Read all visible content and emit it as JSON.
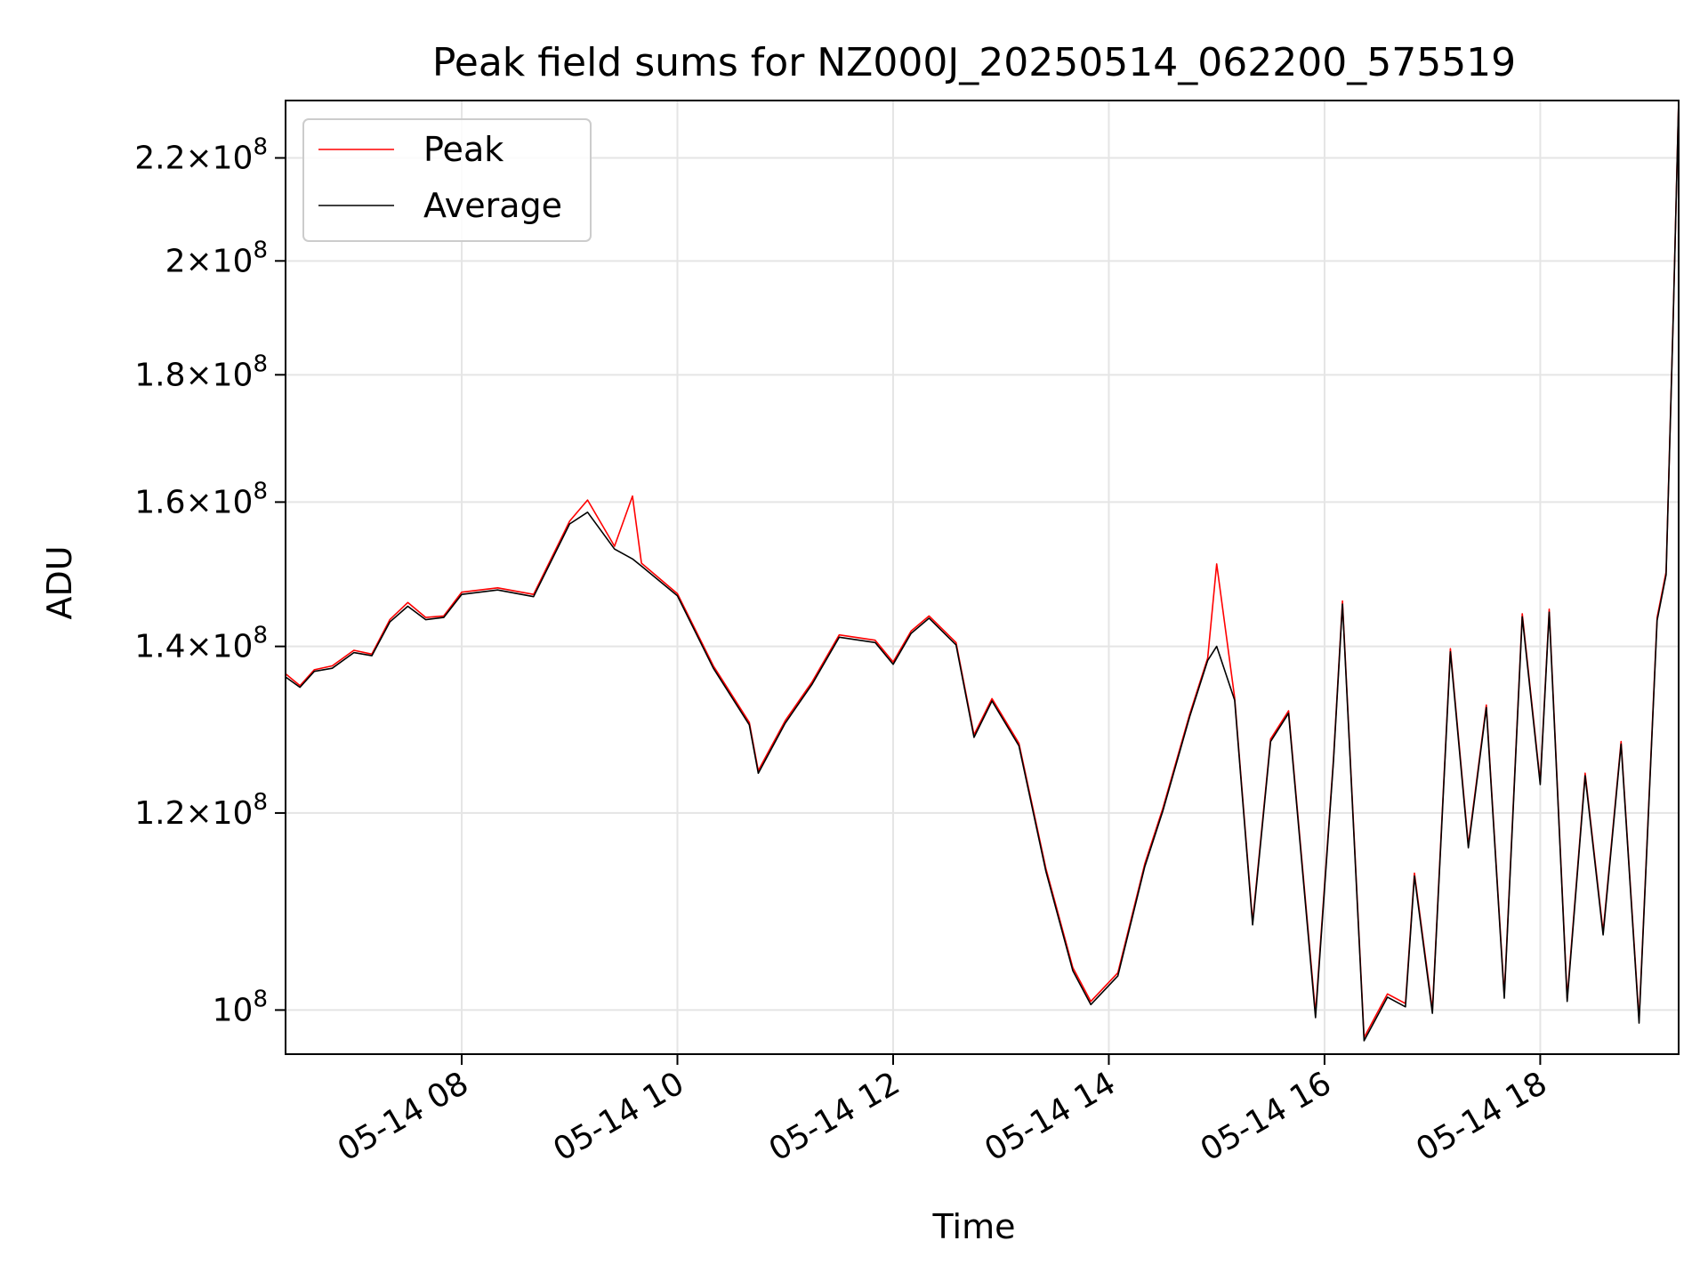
{
  "chart_data": {
    "type": "line",
    "title": "Peak field sums for NZ000J_20250514_062200_575519",
    "xlabel": "Time",
    "ylabel": "ADU",
    "y_scale": "log",
    "grid": true,
    "legend_position": "top-left",
    "xlim": [
      "2025-05-14 06:22",
      "2025-05-14 19:17"
    ],
    "ylim": [
      96000000,
      232000000
    ],
    "x_tick_labels": [
      "05-14 08",
      "05-14 10",
      "05-14 12",
      "05-14 14",
      "05-14 16",
      "05-14 18"
    ],
    "y_ticks": [
      {
        "value": 100000000,
        "mantissa": "",
        "exp": "8"
      },
      {
        "value": 120000000,
        "mantissa": "1.2",
        "exp": "8"
      },
      {
        "value": 140000000,
        "mantissa": "1.4",
        "exp": "8"
      },
      {
        "value": 160000000,
        "mantissa": "1.6",
        "exp": "8"
      },
      {
        "value": 180000000,
        "mantissa": "1.8",
        "exp": "8"
      },
      {
        "value": 200000000,
        "mantissa": "2",
        "exp": "8"
      },
      {
        "value": 220000000,
        "mantissa": "2.2",
        "exp": "8"
      }
    ],
    "series": [
      {
        "name": "Peak",
        "color": "#ff0000",
        "points": [
          [
            "2025-05-14 06:22",
            136500000
          ],
          [
            "2025-05-14 06:30",
            135000000
          ],
          [
            "2025-05-14 06:38",
            137000000
          ],
          [
            "2025-05-14 06:48",
            137500000
          ],
          [
            "2025-05-14 07:00",
            139500000
          ],
          [
            "2025-05-14 07:10",
            139000000
          ],
          [
            "2025-05-14 07:20",
            143500000
          ],
          [
            "2025-05-14 07:30",
            145800000
          ],
          [
            "2025-05-14 07:40",
            143800000
          ],
          [
            "2025-05-14 07:50",
            144000000
          ],
          [
            "2025-05-14 08:00",
            147200000
          ],
          [
            "2025-05-14 08:20",
            147800000
          ],
          [
            "2025-05-14 08:40",
            146900000
          ],
          [
            "2025-05-14 09:00",
            157200000
          ],
          [
            "2025-05-14 09:10",
            160300000
          ],
          [
            "2025-05-14 09:25",
            153600000
          ],
          [
            "2025-05-14 09:35",
            160900000
          ],
          [
            "2025-05-14 09:40",
            151200000
          ],
          [
            "2025-05-14 10:00",
            147000000
          ],
          [
            "2025-05-14 10:20",
            137500000
          ],
          [
            "2025-05-14 10:40",
            130500000
          ],
          [
            "2025-05-14 10:45",
            124800000
          ],
          [
            "2025-05-14 11:00",
            130700000
          ],
          [
            "2025-05-14 11:15",
            135500000
          ],
          [
            "2025-05-14 11:30",
            141500000
          ],
          [
            "2025-05-14 11:50",
            140800000
          ],
          [
            "2025-05-14 12:00",
            138000000
          ],
          [
            "2025-05-14 12:10",
            142000000
          ],
          [
            "2025-05-14 12:20",
            144000000
          ],
          [
            "2025-05-14 12:35",
            140500000
          ],
          [
            "2025-05-14 12:45",
            129000000
          ],
          [
            "2025-05-14 12:55",
            133400000
          ],
          [
            "2025-05-14 13:10",
            128000000
          ],
          [
            "2025-05-14 13:25",
            114000000
          ],
          [
            "2025-05-14 13:40",
            104000000
          ],
          [
            "2025-05-14 13:50",
            100800000
          ],
          [
            "2025-05-14 14:05",
            103500000
          ],
          [
            "2025-05-14 14:20",
            114500000
          ],
          [
            "2025-05-14 14:30",
            120500000
          ],
          [
            "2025-05-14 14:45",
            131500000
          ],
          [
            "2025-05-14 14:55",
            138500000
          ],
          [
            "2025-05-14 15:00",
            151100000
          ],
          [
            "2025-05-14 15:10",
            133500000
          ],
          [
            "2025-05-14 15:20",
            108500000
          ],
          [
            "2025-05-14 15:30",
            128500000
          ],
          [
            "2025-05-14 15:40",
            131900000
          ],
          [
            "2025-05-14 15:55",
            99700000
          ],
          [
            "2025-05-14 16:05",
            126200000
          ],
          [
            "2025-05-14 16:10",
            146000000
          ],
          [
            "2025-05-14 16:22",
            97500000
          ],
          [
            "2025-05-14 16:35",
            101500000
          ],
          [
            "2025-05-14 16:45",
            100600000
          ],
          [
            "2025-05-14 16:50",
            113500000
          ],
          [
            "2025-05-14 17:00",
            100000000
          ],
          [
            "2025-05-14 17:10",
            139700000
          ],
          [
            "2025-05-14 17:20",
            116500000
          ],
          [
            "2025-05-14 17:30",
            132600000
          ],
          [
            "2025-05-14 17:40",
            101400000
          ],
          [
            "2025-05-14 17:50",
            144300000
          ],
          [
            "2025-05-14 18:00",
            123500000
          ],
          [
            "2025-05-14 18:05",
            144900000
          ],
          [
            "2025-05-14 18:15",
            101100000
          ],
          [
            "2025-05-14 18:25",
            124500000
          ],
          [
            "2025-05-14 18:35",
            107500000
          ],
          [
            "2025-05-14 18:45",
            128200000
          ],
          [
            "2025-05-14 18:55",
            99100000
          ],
          [
            "2025-05-14 19:05",
            143800000
          ],
          [
            "2025-05-14 19:10",
            150000000
          ],
          [
            "2025-05-14 19:14",
            190000000
          ],
          [
            "2025-05-14 19:17",
            232000000
          ]
        ]
      },
      {
        "name": "Average",
        "color": "#000000",
        "points": [
          [
            "2025-05-14 06:22",
            136100000
          ],
          [
            "2025-05-14 06:30",
            134800000
          ],
          [
            "2025-05-14 06:38",
            136800000
          ],
          [
            "2025-05-14 06:48",
            137200000
          ],
          [
            "2025-05-14 07:00",
            139200000
          ],
          [
            "2025-05-14 07:10",
            138800000
          ],
          [
            "2025-05-14 07:20",
            143200000
          ],
          [
            "2025-05-14 07:30",
            145300000
          ],
          [
            "2025-05-14 07:40",
            143500000
          ],
          [
            "2025-05-14 07:50",
            143800000
          ],
          [
            "2025-05-14 08:00",
            146900000
          ],
          [
            "2025-05-14 08:20",
            147500000
          ],
          [
            "2025-05-14 08:40",
            146600000
          ],
          [
            "2025-05-14 09:00",
            156800000
          ],
          [
            "2025-05-14 09:10",
            158500000
          ],
          [
            "2025-05-14 09:25",
            153200000
          ],
          [
            "2025-05-14 09:35",
            151800000
          ],
          [
            "2025-05-14 09:40",
            150800000
          ],
          [
            "2025-05-14 10:00",
            146700000
          ],
          [
            "2025-05-14 10:20",
            137200000
          ],
          [
            "2025-05-14 10:40",
            130200000
          ],
          [
            "2025-05-14 10:45",
            124500000
          ],
          [
            "2025-05-14 11:00",
            130400000
          ],
          [
            "2025-05-14 11:15",
            135200000
          ],
          [
            "2025-05-14 11:30",
            141200000
          ],
          [
            "2025-05-14 11:50",
            140500000
          ],
          [
            "2025-05-14 12:00",
            137700000
          ],
          [
            "2025-05-14 12:10",
            141700000
          ],
          [
            "2025-05-14 12:20",
            143700000
          ],
          [
            "2025-05-14 12:35",
            140200000
          ],
          [
            "2025-05-14 12:45",
            128700000
          ],
          [
            "2025-05-14 12:55",
            133100000
          ],
          [
            "2025-05-14 13:10",
            127700000
          ],
          [
            "2025-05-14 13:25",
            113700000
          ],
          [
            "2025-05-14 13:40",
            103700000
          ],
          [
            "2025-05-14 13:50",
            100500000
          ],
          [
            "2025-05-14 14:05",
            103200000
          ],
          [
            "2025-05-14 14:20",
            114200000
          ],
          [
            "2025-05-14 14:30",
            120200000
          ],
          [
            "2025-05-14 14:45",
            131200000
          ],
          [
            "2025-05-14 14:55",
            138200000
          ],
          [
            "2025-05-14 15:00",
            140000000
          ],
          [
            "2025-05-14 15:10",
            133200000
          ],
          [
            "2025-05-14 15:20",
            108200000
          ],
          [
            "2025-05-14 15:30",
            128200000
          ],
          [
            "2025-05-14 15:40",
            131600000
          ],
          [
            "2025-05-14 15:55",
            99300000
          ],
          [
            "2025-05-14 16:05",
            125900000
          ],
          [
            "2025-05-14 16:10",
            145600000
          ],
          [
            "2025-05-14 16:22",
            97200000
          ],
          [
            "2025-05-14 16:35",
            101200000
          ],
          [
            "2025-05-14 16:45",
            100300000
          ],
          [
            "2025-05-14 16:50",
            113200000
          ],
          [
            "2025-05-14 17:00",
            99700000
          ],
          [
            "2025-05-14 17:10",
            139300000
          ],
          [
            "2025-05-14 17:20",
            116200000
          ],
          [
            "2025-05-14 17:30",
            132300000
          ],
          [
            "2025-05-14 17:40",
            101100000
          ],
          [
            "2025-05-14 17:50",
            143900000
          ],
          [
            "2025-05-14 18:00",
            123200000
          ],
          [
            "2025-05-14 18:05",
            144500000
          ],
          [
            "2025-05-14 18:15",
            100800000
          ],
          [
            "2025-05-14 18:25",
            124200000
          ],
          [
            "2025-05-14 18:35",
            107200000
          ],
          [
            "2025-05-14 18:45",
            127900000
          ],
          [
            "2025-05-14 18:55",
            98800000
          ],
          [
            "2025-05-14 19:05",
            143400000
          ],
          [
            "2025-05-14 19:10",
            149600000
          ],
          [
            "2025-05-14 19:14",
            189600000
          ],
          [
            "2025-05-14 19:17",
            232000000
          ]
        ]
      }
    ]
  }
}
